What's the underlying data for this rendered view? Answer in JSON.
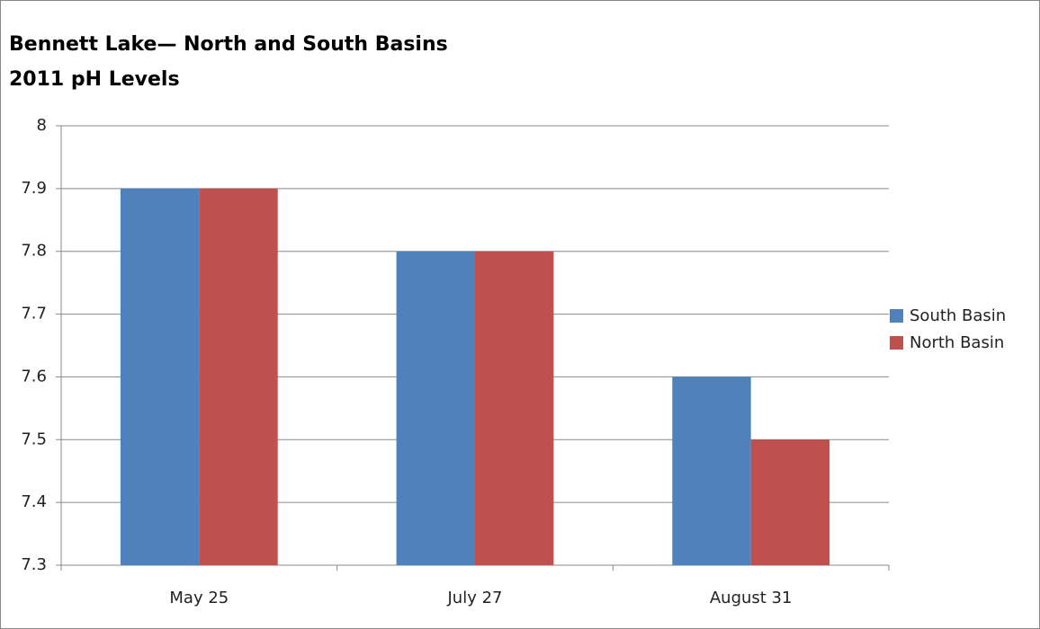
{
  "chart_data": {
    "type": "bar",
    "title": "Bennett Lake— North and South Basins",
    "subtitle": "2011 pH Levels",
    "categories": [
      "May 25",
      "July 27",
      "August 31"
    ],
    "series": [
      {
        "name": "South Basin",
        "color": "#4f81bd",
        "values": [
          7.9,
          7.8,
          7.6
        ]
      },
      {
        "name": "North Basin",
        "color": "#c0504d",
        "values": [
          7.9,
          7.8,
          7.5
        ]
      }
    ],
    "ylim": [
      7.3,
      8
    ],
    "yticks": [
      7.3,
      7.4,
      7.5,
      7.6,
      7.7,
      7.8,
      7.9,
      8
    ],
    "grid": true,
    "legend": "right"
  }
}
